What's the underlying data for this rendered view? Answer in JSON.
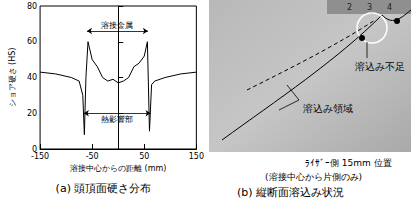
{
  "chart_data": {
    "type": "line",
    "caption": "(a) 頭頂面硬さ分布",
    "x_label": "溶接中心からの距離 (mm)",
    "y_label": "ショア硬さ (HS)",
    "x": [
      -150,
      -120,
      -90,
      -75,
      -68,
      -65,
      -62,
      -58,
      -50,
      -40,
      -30,
      -20,
      -10,
      0,
      10,
      20,
      30,
      40,
      50,
      56,
      60,
      64,
      70,
      90,
      120,
      150
    ],
    "values": [
      43,
      42,
      40,
      38,
      30,
      8,
      40,
      60,
      50,
      46,
      40,
      38,
      39,
      37,
      38,
      40,
      46,
      48,
      52,
      60,
      10,
      36,
      38,
      40,
      42,
      43
    ],
    "color": "#000000",
    "xlim": [
      -150,
      150
    ],
    "xticks": [
      -150,
      -50,
      50,
      150
    ],
    "ylim": [
      0,
      80
    ],
    "yticks": [
      0,
      20,
      40,
      60,
      80
    ],
    "grid": false,
    "annotations": [
      {
        "text": "溶接金属",
        "x": [
          -60,
          57
        ],
        "y": 66
      },
      {
        "text": "熱影響部",
        "x": [
          -66,
          62
        ],
        "y": 20
      }
    ]
  },
  "photo": {
    "caption": "(b) 縦断面溶込み状況",
    "ruler": [
      "2",
      "3",
      "4"
    ],
    "labels": [
      "溶込み不足",
      "溶込み領域"
    ],
    "note": [
      "ﾗｲｻﾞｰ側 15mm 位置",
      "(溶接中心から片側のみ)"
    ]
  }
}
